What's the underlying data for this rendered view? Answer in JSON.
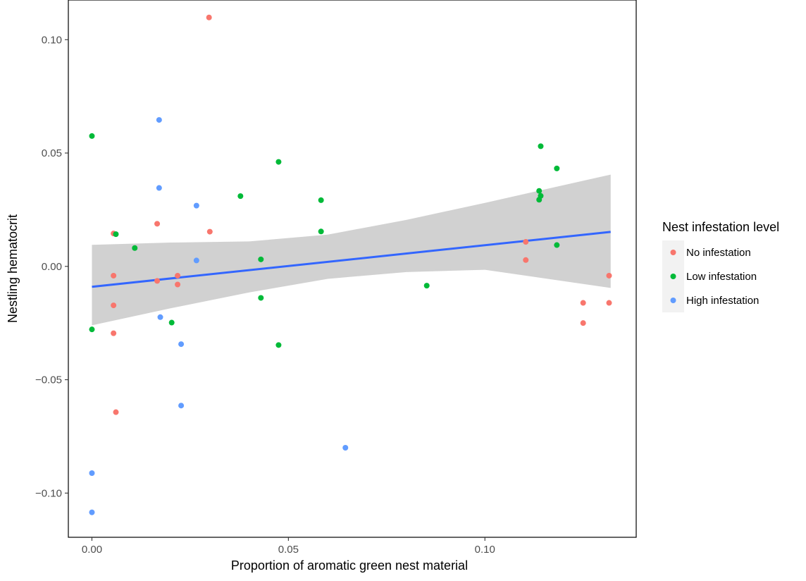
{
  "chart_data": {
    "type": "scatter",
    "title": "",
    "xlabel": "Proportion of aromatic green nest material",
    "ylabel": "Nestling hematocrit",
    "xlim": [
      -0.006,
      0.1385
    ],
    "ylim": [
      -0.1195,
      0.1175
    ],
    "x_ticks": [
      {
        "value": 0.0,
        "label": "0.00"
      },
      {
        "value": 0.05,
        "label": "0.05"
      },
      {
        "value": 0.1,
        "label": "0.10"
      }
    ],
    "y_ticks": [
      {
        "value": -0.1,
        "label": "−0.10"
      },
      {
        "value": -0.05,
        "label": "−0.05"
      },
      {
        "value": 0.0,
        "label": "0.00"
      },
      {
        "value": 0.05,
        "label": "0.05"
      },
      {
        "value": 0.1,
        "label": "0.10"
      }
    ],
    "grid": false,
    "legend": {
      "title": "Nest infestation level",
      "placement": "right"
    },
    "series": [
      {
        "name": "No infestation",
        "color": "#F8766D",
        "points": [
          {
            "x": 0.0298,
            "y": 0.1098
          },
          {
            "x": 0.0055,
            "y": 0.0145
          },
          {
            "x": 0.0166,
            "y": 0.0188
          },
          {
            "x": 0.03,
            "y": 0.0153
          },
          {
            "x": 0.0055,
            "y": -0.0041
          },
          {
            "x": 0.0166,
            "y": -0.0064
          },
          {
            "x": 0.0218,
            "y": -0.0041
          },
          {
            "x": 0.0218,
            "y": -0.008
          },
          {
            "x": 0.0055,
            "y": -0.0172
          },
          {
            "x": 0.0055,
            "y": -0.0295
          },
          {
            "x": 0.0061,
            "y": -0.0643
          },
          {
            "x": 0.1104,
            "y": 0.0108
          },
          {
            "x": 0.1104,
            "y": 0.0028
          },
          {
            "x": 0.1316,
            "y": -0.0041
          },
          {
            "x": 0.125,
            "y": -0.0161
          },
          {
            "x": 0.1316,
            "y": -0.0161
          },
          {
            "x": 0.125,
            "y": -0.025
          }
        ]
      },
      {
        "name": "Low infestation",
        "color": "#00BA38",
        "points": [
          {
            "x": 0.0,
            "y": 0.0575
          },
          {
            "x": 0.0,
            "y": -0.0278
          },
          {
            "x": 0.0061,
            "y": 0.0142
          },
          {
            "x": 0.0109,
            "y": 0.0081
          },
          {
            "x": 0.0203,
            "y": -0.0248
          },
          {
            "x": 0.0378,
            "y": 0.031
          },
          {
            "x": 0.043,
            "y": 0.0031
          },
          {
            "x": 0.043,
            "y": -0.0139
          },
          {
            "x": 0.0475,
            "y": 0.0461
          },
          {
            "x": 0.0475,
            "y": -0.0347
          },
          {
            "x": 0.0583,
            "y": 0.0292
          },
          {
            "x": 0.0583,
            "y": 0.0154
          },
          {
            "x": 0.0852,
            "y": -0.0085
          },
          {
            "x": 0.1142,
            "y": 0.053
          },
          {
            "x": 0.1183,
            "y": 0.0432
          },
          {
            "x": 0.1138,
            "y": 0.0333
          },
          {
            "x": 0.1142,
            "y": 0.0311
          },
          {
            "x": 0.1138,
            "y": 0.0294
          },
          {
            "x": 0.1183,
            "y": 0.0094
          }
        ]
      },
      {
        "name": "High infestation",
        "color": "#619CFF",
        "points": [
          {
            "x": 0.0171,
            "y": 0.0646
          },
          {
            "x": 0.0171,
            "y": 0.0346
          },
          {
            "x": 0.0266,
            "y": 0.0268
          },
          {
            "x": 0.0266,
            "y": 0.0026
          },
          {
            "x": 0.0174,
            "y": -0.0224
          },
          {
            "x": 0.0227,
            "y": -0.0343
          },
          {
            "x": 0.0227,
            "y": -0.0614
          },
          {
            "x": 0.0645,
            "y": -0.08
          },
          {
            "x": 0.0,
            "y": -0.0912
          },
          {
            "x": 0.0,
            "y": -0.1085
          }
        ]
      }
    ],
    "trend": {
      "type": "linear",
      "color": "#3366FF",
      "band_color": "#BEBEBE",
      "x": [
        0.0,
        0.132
      ],
      "y": [
        -0.009,
        0.0152
      ],
      "band": [
        {
          "x": 0.0,
          "lower": -0.026,
          "upper": 0.0095
        },
        {
          "x": 0.02,
          "lower": -0.0185,
          "upper": 0.0105
        },
        {
          "x": 0.04,
          "lower": -0.0115,
          "upper": 0.011
        },
        {
          "x": 0.06,
          "lower": -0.0055,
          "upper": 0.014
        },
        {
          "x": 0.08,
          "lower": -0.0025,
          "upper": 0.0205
        },
        {
          "x": 0.1,
          "lower": -0.0015,
          "upper": 0.028
        },
        {
          "x": 0.132,
          "lower": -0.0095,
          "upper": 0.0405
        }
      ]
    }
  }
}
